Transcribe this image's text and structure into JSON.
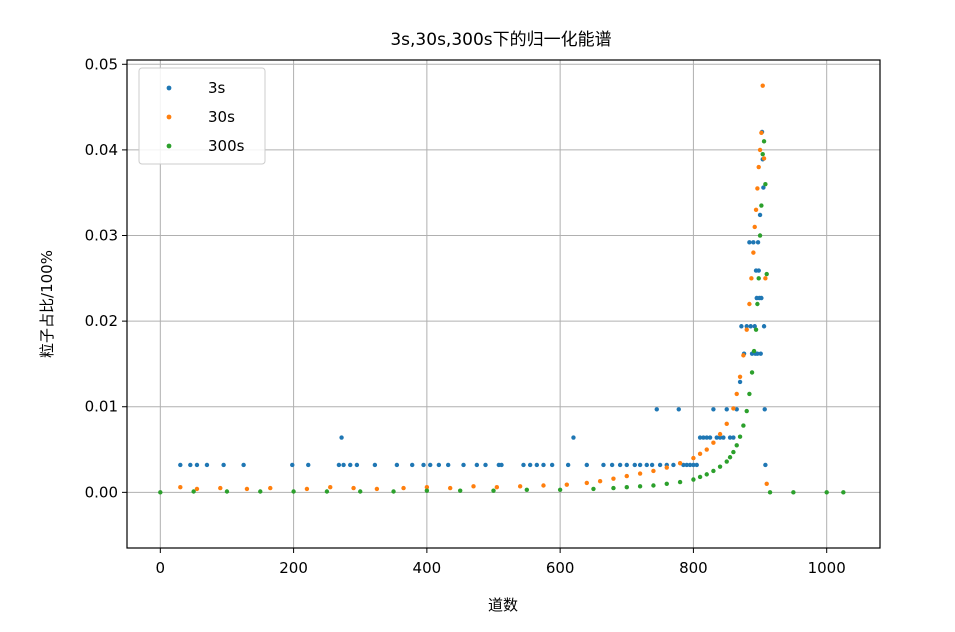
{
  "chart_data": {
    "type": "scatter",
    "title": "3s,30s,300s下的归一化能谱",
    "xlabel": "道数",
    "ylabel": "粒子占比/100%",
    "xlim": [
      -50,
      1080
    ],
    "ylim": [
      -0.0065,
      0.0505
    ],
    "x_ticks": [
      0,
      200,
      400,
      600,
      800,
      1000
    ],
    "x_tick_labels": [
      "0",
      "200",
      "400",
      "600",
      "800",
      "1000"
    ],
    "y_ticks": [
      0.0,
      0.01,
      0.02,
      0.03,
      0.04,
      0.05
    ],
    "y_tick_labels": [
      "0.00",
      "0.01",
      "0.02",
      "0.03",
      "0.04",
      "0.05"
    ],
    "grid": true,
    "legend_position": "top-left",
    "series": [
      {
        "name": "3s",
        "color": "#1f77b4",
        "x": [
          30,
          45,
          55,
          70,
          95,
          125,
          198,
          222,
          268,
          272,
          275,
          285,
          295,
          322,
          355,
          378,
          395,
          405,
          418,
          432,
          455,
          475,
          488,
          508,
          512,
          545,
          555,
          565,
          575,
          588,
          612,
          620,
          640,
          665,
          678,
          690,
          700,
          712,
          720,
          730,
          738,
          745,
          750,
          760,
          770,
          778,
          785,
          790,
          795,
          800,
          805,
          810,
          815,
          820,
          825,
          830,
          835,
          840,
          845,
          850,
          855,
          860,
          865,
          870,
          872,
          876,
          880,
          884,
          886,
          888,
          890,
          892,
          893,
          894,
          895,
          896,
          897,
          898,
          899,
          900,
          901,
          902,
          903,
          904,
          905,
          906,
          907,
          908
        ],
        "y": [
          0.0032,
          0.0032,
          0.0032,
          0.0032,
          0.0032,
          0.0032,
          0.0032,
          0.0032,
          0.0032,
          0.0064,
          0.0032,
          0.0032,
          0.0032,
          0.0032,
          0.0032,
          0.0032,
          0.0032,
          0.0032,
          0.0032,
          0.0032,
          0.0032,
          0.0032,
          0.0032,
          0.0032,
          0.0032,
          0.0032,
          0.0032,
          0.0032,
          0.0032,
          0.0032,
          0.0032,
          0.0064,
          0.0032,
          0.0032,
          0.0032,
          0.0032,
          0.0032,
          0.0032,
          0.0032,
          0.0032,
          0.0032,
          0.0097,
          0.0032,
          0.0032,
          0.0032,
          0.0097,
          0.0032,
          0.0032,
          0.0032,
          0.0032,
          0.0032,
          0.0064,
          0.0064,
          0.0064,
          0.0064,
          0.0097,
          0.0064,
          0.0064,
          0.0064,
          0.0097,
          0.0064,
          0.0064,
          0.0097,
          0.0129,
          0.0194,
          0.0162,
          0.0194,
          0.0292,
          0.0194,
          0.0162,
          0.0292,
          0.0194,
          0.0162,
          0.0259,
          0.0227,
          0.0162,
          0.0292,
          0.0259,
          0.0227,
          0.0324,
          0.0162,
          0.0227,
          0.0421,
          0.0389,
          0.0356,
          0.0194,
          0.0097,
          0.0032
        ]
      },
      {
        "name": "30s",
        "color": "#ff7f0e",
        "x": [
          30,
          55,
          90,
          130,
          165,
          220,
          255,
          290,
          325,
          365,
          400,
          435,
          470,
          505,
          540,
          575,
          610,
          640,
          660,
          680,
          700,
          720,
          740,
          760,
          780,
          800,
          810,
          820,
          830,
          840,
          850,
          860,
          865,
          870,
          875,
          880,
          884,
          887,
          890,
          892,
          894,
          896,
          898,
          900,
          902,
          904,
          906,
          908,
          910
        ],
        "y": [
          0.0006,
          0.0004,
          0.0005,
          0.0004,
          0.0005,
          0.0004,
          0.0006,
          0.0005,
          0.0004,
          0.0005,
          0.0006,
          0.0005,
          0.0007,
          0.0006,
          0.0007,
          0.0008,
          0.0009,
          0.0011,
          0.0013,
          0.0016,
          0.0019,
          0.0022,
          0.0025,
          0.0029,
          0.0034,
          0.004,
          0.0045,
          0.005,
          0.0058,
          0.0068,
          0.008,
          0.0098,
          0.0115,
          0.0135,
          0.016,
          0.019,
          0.022,
          0.025,
          0.028,
          0.031,
          0.033,
          0.0355,
          0.038,
          0.04,
          0.042,
          0.0475,
          0.039,
          0.025,
          0.001
        ]
      },
      {
        "name": "300s",
        "color": "#2ca02c",
        "x": [
          0,
          50,
          100,
          150,
          200,
          250,
          300,
          350,
          400,
          450,
          500,
          550,
          600,
          650,
          680,
          700,
          720,
          740,
          760,
          780,
          800,
          810,
          820,
          830,
          840,
          850,
          855,
          860,
          865,
          870,
          875,
          880,
          884,
          888,
          891,
          894,
          896,
          898,
          900,
          902,
          904,
          906,
          908,
          910,
          915,
          950,
          1000,
          1025
        ],
        "y": [
          0.0,
          0.0001,
          0.0001,
          0.0001,
          0.0001,
          0.0001,
          0.0001,
          0.0001,
          0.0002,
          0.0002,
          0.0002,
          0.0003,
          0.0003,
          0.0004,
          0.0005,
          0.0006,
          0.0007,
          0.0008,
          0.001,
          0.0012,
          0.0015,
          0.0018,
          0.0021,
          0.0025,
          0.003,
          0.0036,
          0.0041,
          0.0047,
          0.0055,
          0.0065,
          0.0078,
          0.0095,
          0.0115,
          0.014,
          0.0165,
          0.019,
          0.022,
          0.025,
          0.03,
          0.0335,
          0.0395,
          0.041,
          0.036,
          0.0255,
          0.0,
          0.0,
          0.0,
          0.0
        ]
      }
    ]
  }
}
